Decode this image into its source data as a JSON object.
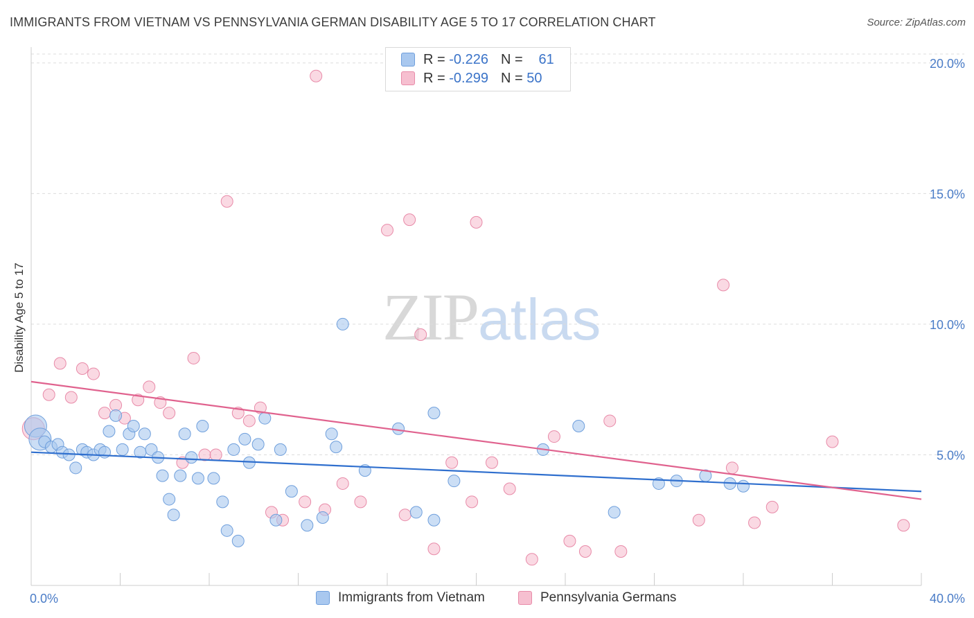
{
  "title": "IMMIGRANTS FROM VIETNAM VS PENNSYLVANIA GERMAN DISABILITY AGE 5 TO 17 CORRELATION CHART",
  "source": "Source: ZipAtlas.com",
  "watermark": {
    "zip": "ZIP",
    "atlas": "atlas"
  },
  "legend": {
    "rows": [
      {
        "r_label": "R =",
        "r_value": "-0.226",
        "n_label": "N =",
        "n_value": "61"
      },
      {
        "r_label": "R =",
        "r_value": "-0.299",
        "n_label": "N =",
        "n_value": "50"
      }
    ]
  },
  "colors": {
    "blue_fill": "#a9c8ef",
    "blue_stroke": "#6f9fdc",
    "blue_line": "#2f6fce",
    "pink_fill": "#f6bfd0",
    "pink_stroke": "#e88aa8",
    "pink_line": "#e0628e",
    "grid": "#dcdcdc",
    "tick_text": "#4a7cc7"
  },
  "chart_data": {
    "type": "scatter",
    "title": "IMMIGRANTS FROM VIETNAM VS PENNSYLVANIA GERMAN DISABILITY AGE 5 TO 17 CORRELATION CHART",
    "xlabel": "",
    "ylabel": "Disability Age 5 to 17",
    "xlim": [
      0,
      40
    ],
    "ylim": [
      0,
      20.5
    ],
    "x_tick_labels": [
      "0.0%",
      "40.0%"
    ],
    "y_ticks": [
      5,
      10,
      15,
      20
    ],
    "y_tick_labels": [
      "5.0%",
      "10.0%",
      "15.0%",
      "20.0%"
    ],
    "grid": true,
    "legend_position": "bottom",
    "series": [
      {
        "name": "Immigrants from Vietnam",
        "color": "#a9c8ef",
        "trend": {
          "x": [
            0,
            40
          ],
          "y": [
            5.1,
            3.6
          ]
        },
        "points": [
          {
            "x": 0.2,
            "y": 6.1,
            "big": true
          },
          {
            "x": 0.4,
            "y": 5.6,
            "big": true
          },
          {
            "x": 0.6,
            "y": 5.5
          },
          {
            "x": 0.9,
            "y": 5.3
          },
          {
            "x": 1.2,
            "y": 5.4
          },
          {
            "x": 1.4,
            "y": 5.1
          },
          {
            "x": 1.7,
            "y": 5.0
          },
          {
            "x": 2.0,
            "y": 4.5
          },
          {
            "x": 2.3,
            "y": 5.2
          },
          {
            "x": 2.5,
            "y": 5.1
          },
          {
            "x": 2.8,
            "y": 5.0
          },
          {
            "x": 3.1,
            "y": 5.2
          },
          {
            "x": 3.3,
            "y": 5.1
          },
          {
            "x": 3.5,
            "y": 5.9
          },
          {
            "x": 3.8,
            "y": 6.5
          },
          {
            "x": 4.1,
            "y": 5.2
          },
          {
            "x": 4.4,
            "y": 5.8
          },
          {
            "x": 4.6,
            "y": 6.1
          },
          {
            "x": 4.9,
            "y": 5.1
          },
          {
            "x": 5.1,
            "y": 5.8
          },
          {
            "x": 5.4,
            "y": 5.2
          },
          {
            "x": 5.7,
            "y": 4.9
          },
          {
            "x": 5.9,
            "y": 4.2
          },
          {
            "x": 6.2,
            "y": 3.3
          },
          {
            "x": 6.4,
            "y": 2.7
          },
          {
            "x": 6.7,
            "y": 4.2
          },
          {
            "x": 6.9,
            "y": 5.8
          },
          {
            "x": 7.2,
            "y": 4.9
          },
          {
            "x": 7.5,
            "y": 4.1
          },
          {
            "x": 7.7,
            "y": 6.1
          },
          {
            "x": 8.2,
            "y": 4.1
          },
          {
            "x": 8.6,
            "y": 3.2
          },
          {
            "x": 8.8,
            "y": 2.1
          },
          {
            "x": 9.1,
            "y": 5.2
          },
          {
            "x": 9.3,
            "y": 1.7
          },
          {
            "x": 9.6,
            "y": 5.6
          },
          {
            "x": 9.8,
            "y": 4.7
          },
          {
            "x": 10.2,
            "y": 5.4
          },
          {
            "x": 10.5,
            "y": 6.4
          },
          {
            "x": 11.0,
            "y": 2.5
          },
          {
            "x": 11.2,
            "y": 5.2
          },
          {
            "x": 11.7,
            "y": 3.6
          },
          {
            "x": 12.4,
            "y": 2.3
          },
          {
            "x": 13.1,
            "y": 2.6
          },
          {
            "x": 13.5,
            "y": 5.8
          },
          {
            "x": 13.7,
            "y": 5.3
          },
          {
            "x": 14.0,
            "y": 10.0
          },
          {
            "x": 15.0,
            "y": 4.4
          },
          {
            "x": 16.5,
            "y": 6.0
          },
          {
            "x": 17.3,
            "y": 2.8
          },
          {
            "x": 18.1,
            "y": 2.5
          },
          {
            "x": 18.1,
            "y": 6.6
          },
          {
            "x": 19.0,
            "y": 4.0
          },
          {
            "x": 23.0,
            "y": 5.2
          },
          {
            "x": 24.6,
            "y": 6.1
          },
          {
            "x": 26.2,
            "y": 2.8
          },
          {
            "x": 28.2,
            "y": 3.9
          },
          {
            "x": 29.0,
            "y": 4.0
          },
          {
            "x": 30.3,
            "y": 4.2
          },
          {
            "x": 31.4,
            "y": 3.9
          },
          {
            "x": 32.0,
            "y": 3.8
          }
        ]
      },
      {
        "name": "Pennsylvania Germans",
        "color": "#f6bfd0",
        "trend": {
          "x": [
            0,
            40
          ],
          "y": [
            7.8,
            3.3
          ]
        },
        "points": [
          {
            "x": 0.1,
            "y": 6.0,
            "big": true
          },
          {
            "x": 0.8,
            "y": 7.3
          },
          {
            "x": 1.3,
            "y": 8.5
          },
          {
            "x": 1.8,
            "y": 7.2
          },
          {
            "x": 2.3,
            "y": 8.3
          },
          {
            "x": 2.8,
            "y": 8.1
          },
          {
            "x": 3.3,
            "y": 6.6
          },
          {
            "x": 3.8,
            "y": 6.9
          },
          {
            "x": 4.2,
            "y": 6.4
          },
          {
            "x": 4.8,
            "y": 7.1
          },
          {
            "x": 5.3,
            "y": 7.6
          },
          {
            "x": 5.8,
            "y": 7.0
          },
          {
            "x": 6.2,
            "y": 6.6
          },
          {
            "x": 6.8,
            "y": 4.7
          },
          {
            "x": 7.3,
            "y": 8.7
          },
          {
            "x": 7.8,
            "y": 5.0
          },
          {
            "x": 8.3,
            "y": 5.0
          },
          {
            "x": 8.8,
            "y": 14.7
          },
          {
            "x": 9.3,
            "y": 6.6
          },
          {
            "x": 9.8,
            "y": 6.3
          },
          {
            "x": 10.3,
            "y": 6.8
          },
          {
            "x": 10.8,
            "y": 2.8
          },
          {
            "x": 11.3,
            "y": 2.5
          },
          {
            "x": 12.3,
            "y": 3.2
          },
          {
            "x": 12.8,
            "y": 19.5
          },
          {
            "x": 13.2,
            "y": 2.9
          },
          {
            "x": 14.0,
            "y": 3.9
          },
          {
            "x": 14.8,
            "y": 3.2
          },
          {
            "x": 16.0,
            "y": 13.6
          },
          {
            "x": 16.8,
            "y": 2.7
          },
          {
            "x": 17.0,
            "y": 14.0
          },
          {
            "x": 17.5,
            "y": 9.6
          },
          {
            "x": 18.1,
            "y": 1.4
          },
          {
            "x": 18.9,
            "y": 4.7
          },
          {
            "x": 19.8,
            "y": 3.2
          },
          {
            "x": 20.0,
            "y": 13.9
          },
          {
            "x": 20.7,
            "y": 4.7
          },
          {
            "x": 21.5,
            "y": 3.7
          },
          {
            "x": 22.5,
            "y": 1.0
          },
          {
            "x": 23.5,
            "y": 5.7
          },
          {
            "x": 24.2,
            "y": 1.7
          },
          {
            "x": 24.9,
            "y": 1.3
          },
          {
            "x": 26.0,
            "y": 6.3
          },
          {
            "x": 26.5,
            "y": 1.3
          },
          {
            "x": 30.0,
            "y": 2.5
          },
          {
            "x": 31.1,
            "y": 11.5
          },
          {
            "x": 31.5,
            "y": 4.5
          },
          {
            "x": 32.5,
            "y": 2.4
          },
          {
            "x": 33.3,
            "y": 3.0
          },
          {
            "x": 36.0,
            "y": 5.5
          },
          {
            "x": 39.2,
            "y": 2.3
          }
        ]
      }
    ]
  }
}
